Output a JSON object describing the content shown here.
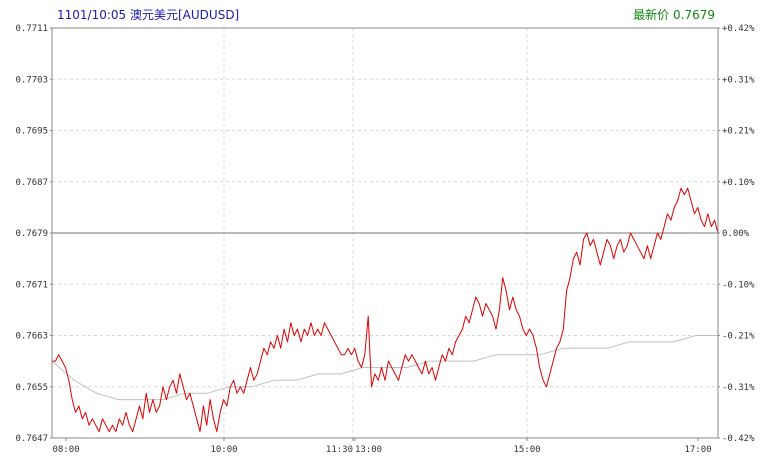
{
  "header": {
    "datetime": "1101/10:05",
    "instrument": "澳元美元[AUDUSD]",
    "latest_label": "最新价",
    "latest_value": "0.7679"
  },
  "colors": {
    "price": "#e00000",
    "average": "#c0c0c0",
    "grid": "#d8d8d8",
    "frame": "#888888",
    "baseline": "#777777"
  },
  "chart_data": {
    "type": "line",
    "title": "",
    "ylim": [
      0.7647,
      0.7711
    ],
    "reference_price": 0.7679,
    "y_ticks": [
      "0.7711",
      "0.7703",
      "0.7695",
      "0.7687",
      "0.7679",
      "0.7671",
      "0.7663",
      "0.7655",
      "0.7647"
    ],
    "y_right_ticks": [
      "+0.42%",
      "+0.31%",
      "+0.21%",
      "+0.10%",
      "0.00%",
      "-0.10%",
      "-0.21%",
      "-0.31%",
      "-0.42%"
    ],
    "x_ticks": [
      "08:00",
      "10:00",
      "11:30",
      "13:00",
      "15:00",
      "17:00"
    ],
    "grid": true,
    "series": [
      {
        "values": [
          0.7659,
          0.7659,
          0.766,
          0.7659,
          0.7658,
          0.7656,
          0.7653,
          0.7651,
          0.7652,
          0.765,
          0.7651,
          0.7649,
          0.765,
          0.7649,
          0.7648,
          0.765,
          0.7649,
          0.7648,
          0.7649,
          0.7648,
          0.765,
          0.7649,
          0.7651,
          0.7649,
          0.7648,
          0.765,
          0.7652,
          0.765,
          0.7654,
          0.7651,
          0.7653,
          0.7651,
          0.7652,
          0.7655,
          0.7653,
          0.7655,
          0.7656,
          0.7654,
          0.7657,
          0.7655,
          0.7653,
          0.7654,
          0.7652,
          0.765,
          0.7648,
          0.7652,
          0.7649,
          0.7653,
          0.765,
          0.7648,
          0.7651,
          0.7653,
          0.7652,
          0.7655,
          0.7656,
          0.7654,
          0.7655,
          0.7654,
          0.7656,
          0.7658,
          0.7656,
          0.7657,
          0.7659,
          0.7661,
          0.766,
          0.7662,
          0.7661,
          0.7663,
          0.7661,
          0.7664,
          0.7662,
          0.7665,
          0.7663,
          0.7664,
          0.7662,
          0.7664,
          0.7663,
          0.7665,
          0.7663,
          0.7664,
          0.7663,
          0.7665,
          0.7664,
          0.7663,
          0.7662,
          0.7661,
          0.766,
          0.766,
          0.7661,
          0.766,
          0.7661,
          0.7659,
          0.7658,
          0.766,
          0.7666,
          0.7655,
          0.7657,
          0.7656,
          0.7658,
          0.7656,
          0.7659,
          0.7658,
          0.7657,
          0.7656,
          0.7658,
          0.766,
          0.7659,
          0.766,
          0.7659,
          0.7658,
          0.7657,
          0.7659,
          0.7657,
          0.7658,
          0.7656,
          0.7658,
          0.766,
          0.7659,
          0.7661,
          0.766,
          0.7662,
          0.7663,
          0.7664,
          0.7666,
          0.7665,
          0.7667,
          0.7669,
          0.7668,
          0.7666,
          0.7668,
          0.7667,
          0.7666,
          0.7664,
          0.7667,
          0.7672,
          0.767,
          0.7667,
          0.7669,
          0.7667,
          0.7666,
          0.7664,
          0.7663,
          0.7664,
          0.7663,
          0.7661,
          0.7658,
          0.7656,
          0.7655,
          0.7657,
          0.7659,
          0.7661,
          0.7662,
          0.7664,
          0.767,
          0.7672,
          0.7675,
          0.7676,
          0.7674,
          0.7678,
          0.7679,
          0.7677,
          0.7678,
          0.7676,
          0.7674,
          0.7676,
          0.7678,
          0.7677,
          0.7675,
          0.7677,
          0.7678,
          0.7676,
          0.7677,
          0.7679,
          0.7678,
          0.7677,
          0.7676,
          0.7675,
          0.7677,
          0.7675,
          0.7677,
          0.7679,
          0.7678,
          0.768,
          0.7682,
          0.7681,
          0.7683,
          0.7684,
          0.7686,
          0.7685,
          0.7686,
          0.7684,
          0.7682,
          0.7683,
          0.7681,
          0.768,
          0.7682,
          0.768,
          0.7681,
          0.7679
        ]
      },
      {
        "values": [
          0.7659,
          0.7656,
          0.7654,
          0.7653,
          0.7653,
          0.7653,
          0.7654,
          0.7654,
          0.7655,
          0.7655,
          0.7656,
          0.7656,
          0.7657,
          0.7657,
          0.7658,
          0.7658,
          0.7658,
          0.7659,
          0.7659,
          0.7659,
          0.766,
          0.766,
          0.766,
          0.7661,
          0.7661,
          0.7661,
          0.7662,
          0.7662,
          0.7662,
          0.7663,
          0.7663
        ]
      }
    ]
  }
}
